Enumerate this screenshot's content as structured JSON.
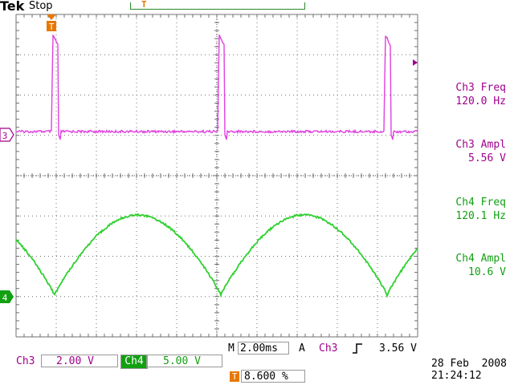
{
  "header": {
    "brand": "Tek",
    "run_state": "Stop",
    "trigger_marker": "T"
  },
  "channels": {
    "ch3_marker": "3",
    "ch4_marker": "4",
    "trigger_pos_marker": "T"
  },
  "measurements": {
    "ch3_freq_label": "Ch3 Freq",
    "ch3_freq_value": "120.0 Hz",
    "ch3_ampl_label": "Ch3 Ampl",
    "ch3_ampl_value": "5.56 V",
    "ch4_freq_label": "Ch4 Freq",
    "ch4_freq_value": "120.1 Hz",
    "ch4_ampl_label": "Ch4 Ampl",
    "ch4_ampl_value": "10.6 V"
  },
  "status": {
    "ch3_label": "Ch3",
    "ch3_scale": "2.00 V",
    "ch4_label": "Ch4",
    "ch4_scale": "5.00 V",
    "timebase_prefix": "M",
    "timebase": "2.00ms",
    "trigger_mode": "A",
    "trigger_source": "Ch3",
    "trigger_slope_icon": "rising-edge-icon",
    "trigger_level": "3.56 V",
    "trigger_position_marker": "T",
    "trigger_position": "8.600 %",
    "date": "28 Feb  2008",
    "time": "21:24:12"
  },
  "colors": {
    "ch3": "#e040e0",
    "ch4": "#30d030",
    "ch3_text": "#a0008c",
    "ch4_text": "#12a012",
    "trigger": "#e87800",
    "grid": "#707070"
  }
}
